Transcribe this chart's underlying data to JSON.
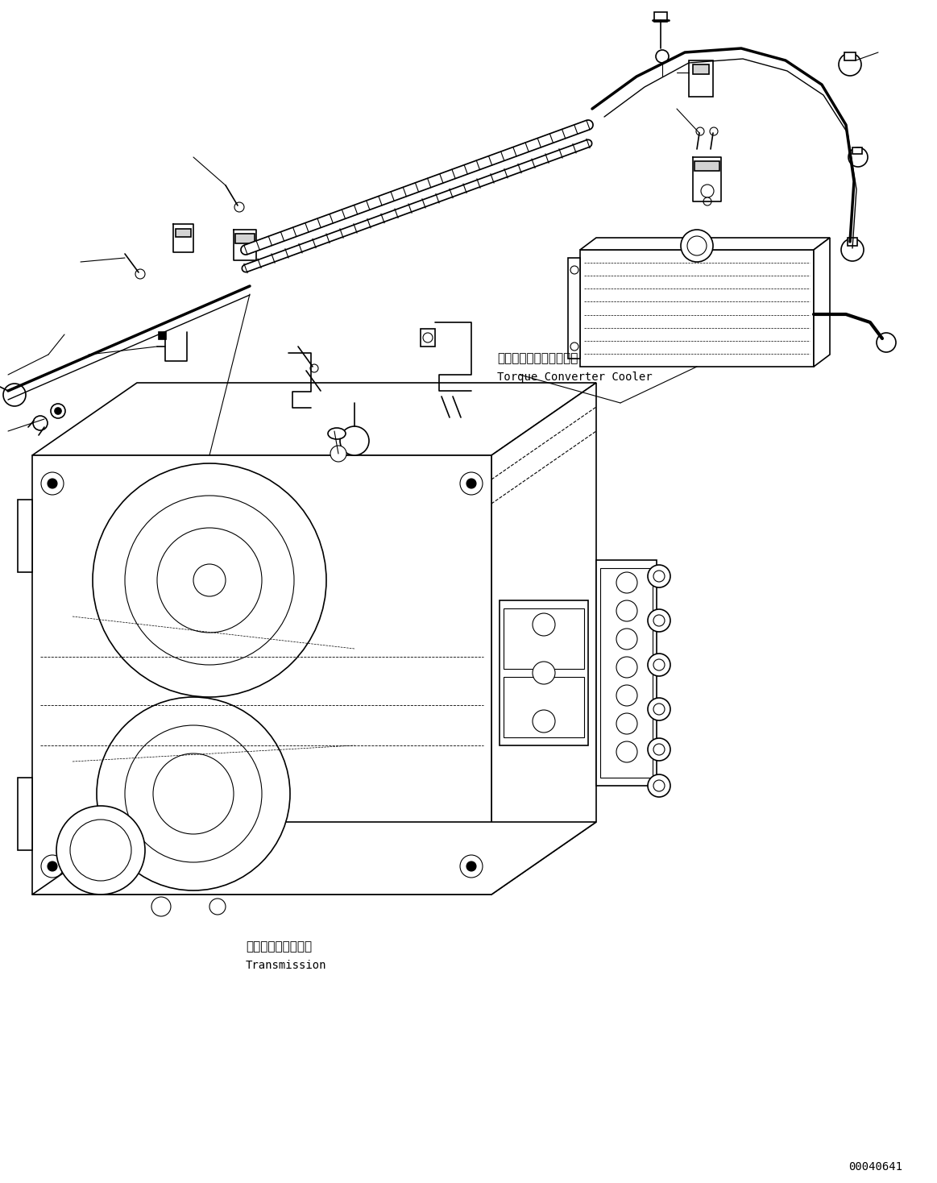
{
  "background_color": "#ffffff",
  "line_color": "#000000",
  "figsize": [
    11.63,
    14.68
  ],
  "dpi": 100,
  "label_torque_converter_jp": "トルクコンバータクーラ",
  "label_torque_converter_en": "Torque Converter Cooler",
  "label_transmission_jp": "トランスミッション",
  "label_transmission_en": "Transmission",
  "code": "00040641",
  "font_size_label": 11,
  "font_size_code": 10
}
